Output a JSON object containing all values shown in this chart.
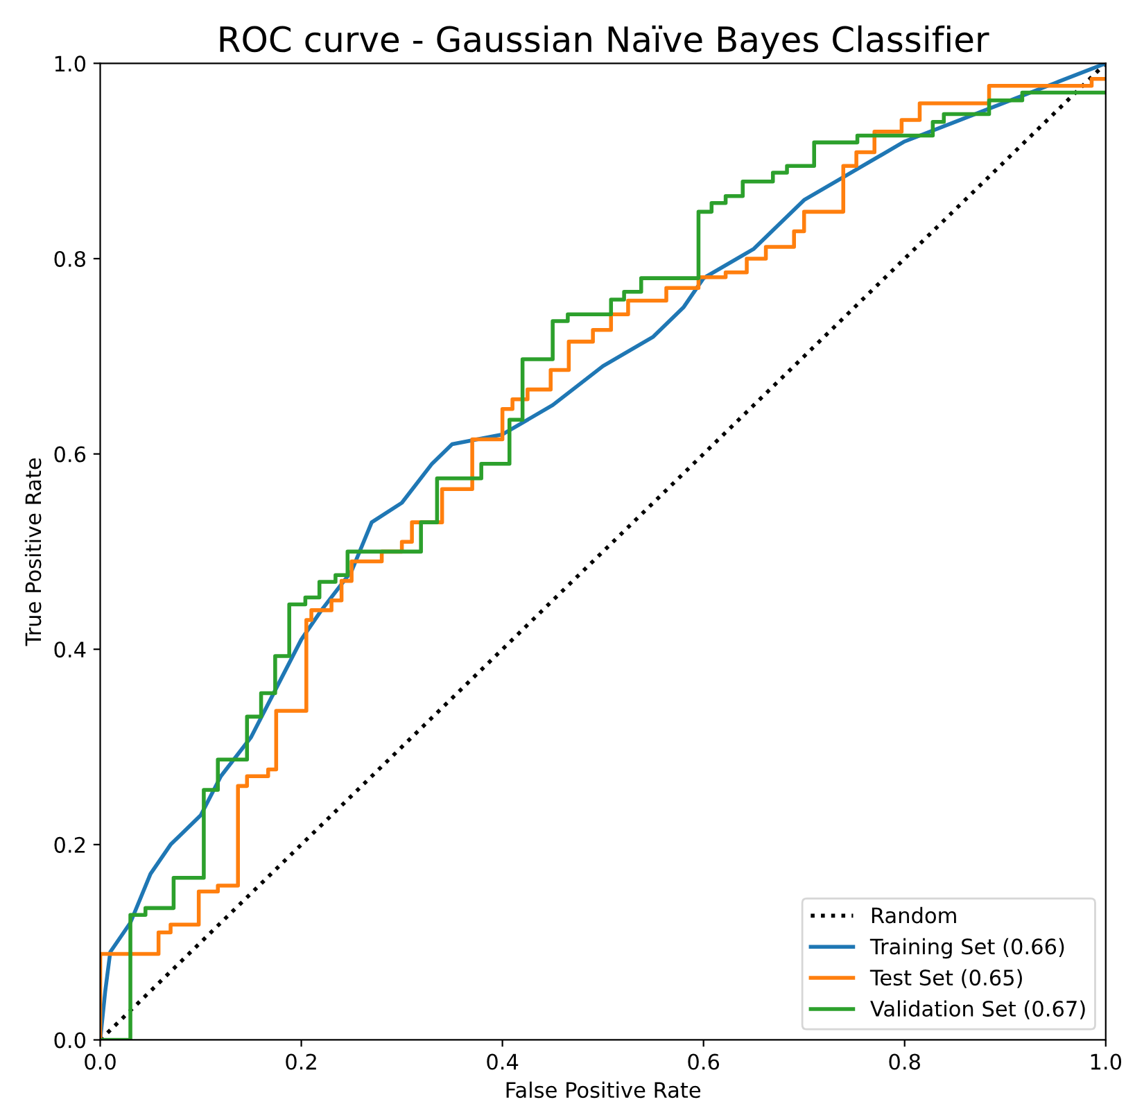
{
  "chart_data": {
    "type": "step",
    "title": "ROC curve - Gaussian Naïve Bayes Classifier",
    "xlabel": "False Positive Rate",
    "ylabel": "True Positive Rate",
    "xlim": [
      0,
      1
    ],
    "ylim": [
      0,
      1
    ],
    "xticks": [
      {
        "value": 0,
        "label": "0.0"
      },
      {
        "value": 0.2,
        "label": "0.2"
      },
      {
        "value": 0.4,
        "label": "0.4"
      },
      {
        "value": 0.6,
        "label": "0.6"
      },
      {
        "value": 0.8,
        "label": "0.8"
      },
      {
        "value": 1,
        "label": "1.0"
      }
    ],
    "yticks": [
      {
        "value": 0,
        "label": "0.0"
      },
      {
        "value": 0.2,
        "label": "0.2"
      },
      {
        "value": 0.4,
        "label": "0.4"
      },
      {
        "value": 0.6,
        "label": "0.6"
      },
      {
        "value": 0.8,
        "label": "0.8"
      },
      {
        "value": 1,
        "label": "1.0"
      }
    ],
    "legend": "bottom right",
    "grid": false,
    "series": [
      {
        "name": "Random",
        "type": "line",
        "color": "#000000",
        "line_style": "dotted",
        "x": [
          0,
          1
        ],
        "values": [
          0,
          1
        ]
      },
      {
        "name": "Training Set (0.66)",
        "type": "line",
        "color": "#1f77b4",
        "x": [
          0,
          0.005,
          0.01,
          0.03,
          0.05,
          0.07,
          0.1,
          0.12,
          0.15,
          0.17,
          0.2,
          0.22,
          0.25,
          0.27,
          0.3,
          0.33,
          0.35,
          0.4,
          0.45,
          0.5,
          0.55,
          0.58,
          0.6,
          0.65,
          0.7,
          0.75,
          0.8,
          0.85,
          0.9,
          0.95,
          1
        ],
        "values": [
          0,
          0.05,
          0.09,
          0.12,
          0.17,
          0.2,
          0.23,
          0.27,
          0.31,
          0.35,
          0.41,
          0.44,
          0.48,
          0.53,
          0.55,
          0.59,
          0.61,
          0.62,
          0.65,
          0.69,
          0.72,
          0.75,
          0.78,
          0.81,
          0.86,
          0.89,
          0.92,
          0.94,
          0.96,
          0.98,
          1
        ]
      },
      {
        "name": "Test Set (0.65)",
        "color": "#ff7f0e",
        "x": [
          0,
          0,
          0.058,
          0.07,
          0.098,
          0.117,
          0.137,
          0.146,
          0.167,
          0.175,
          0.205,
          0.21,
          0.23,
          0.24,
          0.25,
          0.28,
          0.3,
          0.31,
          0.34,
          0.37,
          0.4,
          0.41,
          0.425,
          0.448,
          0.466,
          0.49,
          0.508,
          0.525,
          0.563,
          0.595,
          0.622,
          0.643,
          0.662,
          0.69,
          0.7,
          0.739,
          0.752,
          0.77,
          0.797,
          0.815,
          0.884,
          0.986,
          1
        ],
        "values": [
          0,
          0.088,
          0.11,
          0.118,
          0.152,
          0.158,
          0.26,
          0.27,
          0.277,
          0.337,
          0.43,
          0.44,
          0.45,
          0.47,
          0.49,
          0.5,
          0.51,
          0.53,
          0.564,
          0.615,
          0.646,
          0.656,
          0.666,
          0.686,
          0.715,
          0.727,
          0.743,
          0.757,
          0.77,
          0.781,
          0.786,
          0.8,
          0.812,
          0.828,
          0.848,
          0.895,
          0.909,
          0.93,
          0.942,
          0.959,
          0.977,
          0.984,
          0.984
        ]
      },
      {
        "name": "Validation Set (0.67)",
        "color": "#2ca02c",
        "x": [
          0,
          0.03,
          0.045,
          0.073,
          0.103,
          0.117,
          0.146,
          0.16,
          0.174,
          0.188,
          0.204,
          0.218,
          0.234,
          0.246,
          0.319,
          0.335,
          0.379,
          0.407,
          0.42,
          0.45,
          0.465,
          0.508,
          0.521,
          0.538,
          0.595,
          0.608,
          0.622,
          0.639,
          0.669,
          0.683,
          0.71,
          0.753,
          0.828,
          0.839,
          0.884,
          0.917,
          1
        ],
        "values": [
          0,
          0.128,
          0.135,
          0.166,
          0.256,
          0.287,
          0.331,
          0.355,
          0.393,
          0.446,
          0.453,
          0.469,
          0.476,
          0.5,
          0.53,
          0.575,
          0.59,
          0.635,
          0.697,
          0.736,
          0.743,
          0.758,
          0.766,
          0.78,
          0.848,
          0.857,
          0.864,
          0.879,
          0.888,
          0.895,
          0.919,
          0.926,
          0.94,
          0.948,
          0.962,
          0.97,
          0.97
        ]
      }
    ]
  }
}
